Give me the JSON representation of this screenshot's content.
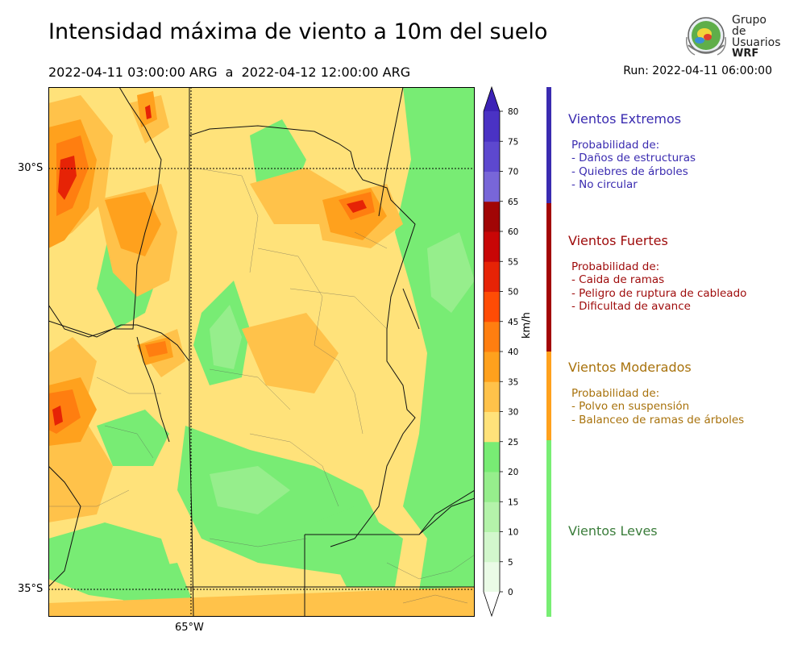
{
  "title": "Intensidad máxima de viento a 10m del suelo",
  "period": "2022-04-11 03:00:00 ARG  a  2022-04-12 12:00:00 ARG",
  "run": "Run: 2022-04-11 06:00:00",
  "logo": {
    "line1": "Grupo de",
    "line2": "Usuarios",
    "line3": "WRF"
  },
  "map": {
    "lat_labels": [
      "30°S",
      "35°S"
    ],
    "lon_labels": [
      "65°W"
    ]
  },
  "colorbar": {
    "unit": "km/h",
    "ticks": [
      "0",
      "5",
      "10",
      "15",
      "20",
      "25",
      "30",
      "35",
      "40",
      "45",
      "50",
      "55",
      "60",
      "65",
      "70",
      "75",
      "80"
    ],
    "colors": [
      "#eafbe6",
      "#d2f7cc",
      "#b4f3aa",
      "#96ee8c",
      "#78ec74",
      "#ffe27a",
      "#ffc24a",
      "#ffa11d",
      "#ff7e10",
      "#ff4c05",
      "#e62306",
      "#c80606",
      "#a10505",
      "#7866d8",
      "#5d48cf",
      "#4a32c4"
    ],
    "extend_top_color": "#3c22b6",
    "extend_bottom_color": "#ffffff"
  },
  "categories": [
    {
      "name": "Vientos Extremos",
      "color": "#3a2bb0",
      "bar_color": "#3a2bb0",
      "label": "Probabilidad de:",
      "items": [
        "- Daños de estructuras",
        "- Quiebres de árboles",
        "- No circular"
      ]
    },
    {
      "name": "Vientos Fuertes",
      "color": "#9e0a0a",
      "bar_color": "#a30606",
      "label": "Probabilidad de:",
      "items": [
        "- Caida de ramas",
        "- Peligro de ruptura de cableado",
        "- Dificultad de avance"
      ]
    },
    {
      "name": "Vientos Moderados",
      "color": "#a8720c",
      "bar_color": "#ffa11d",
      "label": "Probabilidad de:",
      "items": [
        "- Polvo en suspensión",
        "- Balanceo de ramas de árboles"
      ]
    },
    {
      "name": "Vientos Leves",
      "color": "#3b7d3b",
      "bar_color": "#78ee74",
      "label": "",
      "items": []
    }
  ]
}
